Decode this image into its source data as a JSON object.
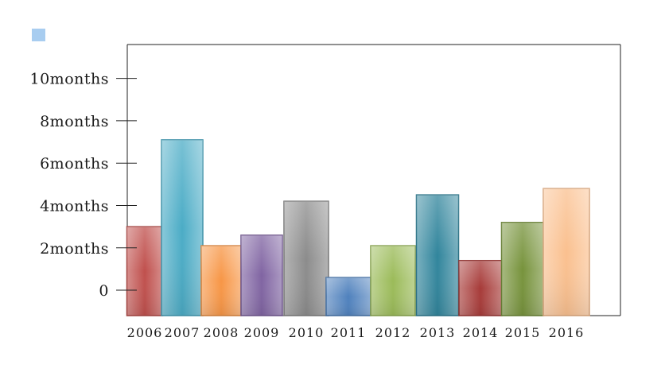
{
  "chart_data": {
    "type": "bar",
    "categories": [
      "2006",
      "2007",
      "2008",
      "2009",
      "2010",
      "2011",
      "2012",
      "2013",
      "2014",
      "2015",
      "2016"
    ],
    "values": [
      3.0,
      7.1,
      2.1,
      2.6,
      4.2,
      0.6,
      2.1,
      4.5,
      1.4,
      3.2,
      4.8
    ],
    "ylim": [
      -1.2,
      11.6
    ],
    "yticks": [
      0,
      2,
      4,
      6,
      8,
      10
    ],
    "ytick_labels": [
      "0",
      "2months",
      "4months",
      "6months",
      "8months",
      "10months"
    ],
    "legend": {
      "placement": "top-left",
      "entries": [
        {
          "name": "",
          "color": "#a8cdf0"
        }
      ]
    },
    "grid": false,
    "colors": [
      "#c0504d",
      "#4bacc6",
      "#f79646",
      "#8064a2",
      "#8c8c8c",
      "#4f81bd",
      "#9bbb59",
      "#31859c",
      "#a73b39",
      "#77933c",
      "#fac08f"
    ]
  }
}
